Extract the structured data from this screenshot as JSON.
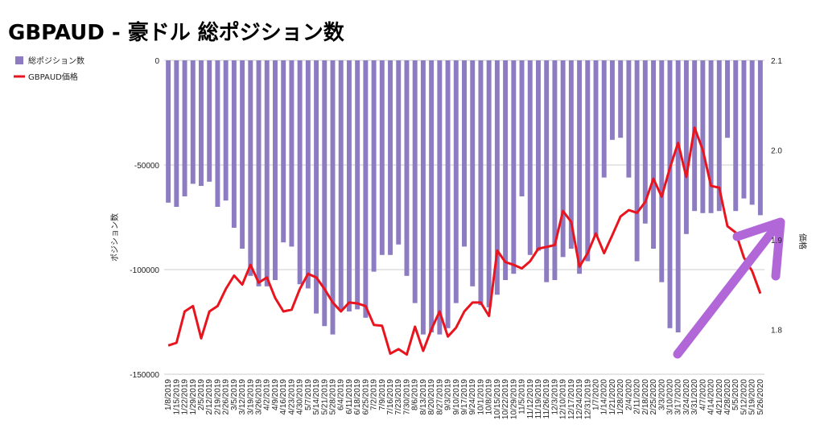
{
  "chart_data": {
    "type": "bar",
    "title": "GBPAUD - 豪ドル 総ポジション数",
    "y_left_label": "ポジション数",
    "y_right_label": "価格",
    "y_left_range": [
      -150000,
      0
    ],
    "y_left_ticks": [
      0,
      -50000,
      -100000,
      -150000
    ],
    "y_left_tick_labels": [
      "0",
      "-50000",
      "-100000",
      "-150000"
    ],
    "y_right_range": [
      1.75,
      2.1
    ],
    "y_right_ticks": [
      2.1,
      2.0,
      1.9,
      1.8
    ],
    "y_right_tick_labels": [
      "2.1",
      "2.0",
      "1.9",
      "1.8"
    ],
    "grid": true,
    "legend_position": "left",
    "categories": [
      "1/8/2019",
      "1/15/2019",
      "1/22/2019",
      "1/29/2019",
      "2/5/2019",
      "2/12/2019",
      "2/19/2019",
      "2/26/2019",
      "3/5/2019",
      "3/12/2019",
      "3/19/2019",
      "3/26/2019",
      "4/2/2019",
      "4/9/2019",
      "4/16/2019",
      "4/23/2019",
      "4/30/2019",
      "5/7/2019",
      "5/14/2019",
      "5/21/2019",
      "5/28/2019",
      "6/4/2019",
      "6/11/2019",
      "6/18/2019",
      "6/25/2019",
      "7/2/2019",
      "7/9/2019",
      "7/16/2019",
      "7/23/2019",
      "7/30/2019",
      "8/6/2019",
      "8/13/2019",
      "8/20/2019",
      "8/27/2019",
      "9/3/2019",
      "9/10/2019",
      "9/17/2019",
      "9/24/2019",
      "10/1/2019",
      "10/8/2019",
      "10/15/2019",
      "10/22/2019",
      "10/29/2019",
      "11/5/2019",
      "11/12/2019",
      "11/19/2019",
      "11/26/2019",
      "12/3/2019",
      "12/10/2019",
      "12/17/2019",
      "12/24/2019",
      "12/31/2019",
      "1/7/2020",
      "1/14/2020",
      "1/21/2020",
      "1/28/2020",
      "2/4/2020",
      "2/11/2020",
      "2/18/2020",
      "2/25/2020",
      "3/3/2020",
      "3/10/2020",
      "3/17/2020",
      "3/24/2020",
      "3/31/2020",
      "4/7/2020",
      "4/14/2020",
      "4/21/2020",
      "4/28/2020",
      "5/5/2020",
      "5/12/2020",
      "5/19/2020",
      "5/26/2020"
    ],
    "x_tick_labels": [
      "1/8/2019",
      "1/15/2019",
      "1/22/2019",
      "1/29/2019",
      "2/5/2019",
      "2/12/2019",
      "2/19/2019",
      "2/26/2019",
      "3/5/2019",
      "3/12/2019",
      "3/19/2019",
      "3/26/2019",
      "4/2/2019",
      "4/9/2019",
      "4/16/2019",
      "4/23/2019",
      "4/30/2019",
      "5/7/2019",
      "5/14/2019",
      "5/21/2019",
      "5/28/2019",
      "6/4/2019",
      "6/11/2019",
      "6/18/2019",
      "6/25/2019",
      "7/2/2019",
      "7/9/2019",
      "7/16/2019",
      "7/23/2019",
      "7/30/2019",
      "8/6/2019",
      "8/13/2019",
      "8/20/2019",
      "8/27/2019",
      "9/3/2019",
      "9/10/2019",
      "9/17/2019",
      "9/24/2019",
      "10/1/2019",
      "10/8/2019",
      "10/15/2019",
      "10/22/2019",
      "10/29/2019",
      "11/5/2019",
      "11/12/2019",
      "11/19/2019",
      "11/26/2019",
      "12/3/2019",
      "12/10/2019",
      "12/17/2019",
      "12/24/2019",
      "12/31/2019",
      "1/7/2020",
      "1/14/2020",
      "1/21/2020",
      "1/28/2020",
      "2/4/2020",
      "2/11/2020",
      "2/18/2020",
      "2/25/2020",
      "3/3/2020",
      "3/10/2020",
      "3/17/2020",
      "3/24/2020",
      "3/31/2020",
      "4/7/2020",
      "4/14/2020",
      "4/21/2020",
      "4/28/2020",
      "5/5/2020",
      "5/12/2020",
      "5/19/2020",
      "5/26/2020"
    ],
    "series": [
      {
        "name": "総ポジション数",
        "type": "bar",
        "axis": "left",
        "color": "#8e7cc3",
        "values": [
          -68000,
          -70000,
          -65000,
          -59000,
          -60000,
          -58000,
          -70000,
          -67000,
          -80000,
          -90000,
          -103000,
          -108000,
          -108000,
          -105000,
          -87000,
          -89000,
          -107000,
          -109000,
          -121000,
          -127000,
          -131000,
          -119000,
          -120000,
          -119000,
          -123000,
          -101000,
          -93000,
          -93000,
          -88000,
          -103000,
          -116000,
          -131000,
          -130000,
          -131000,
          -128000,
          -116000,
          -89000,
          -108000,
          -117000,
          -118000,
          -112000,
          -105000,
          -102000,
          -65000,
          -93000,
          -91000,
          -106000,
          -105000,
          -94000,
          -90000,
          -102000,
          -96000,
          -84000,
          -56000,
          -38000,
          -37000,
          -56000,
          -96000,
          -78000,
          -90000,
          -106000,
          -128000,
          -130000,
          -83000,
          -72000,
          -73000,
          -73000,
          -72000,
          -37000,
          -72000,
          -66000,
          -69000,
          -74000
        ]
      },
      {
        "name": "GBPAUD価格",
        "type": "line",
        "axis": "right",
        "color": "#e8141e",
        "values": [
          1.782,
          1.785,
          1.82,
          1.826,
          1.79,
          1.82,
          1.826,
          1.845,
          1.86,
          1.85,
          1.872,
          1.852,
          1.858,
          1.835,
          1.82,
          1.822,
          1.845,
          1.862,
          1.858,
          1.845,
          1.83,
          1.82,
          1.83,
          1.829,
          1.826,
          1.805,
          1.804,
          1.773,
          1.778,
          1.772,
          1.803,
          1.776,
          1.8,
          1.82,
          1.792,
          1.802,
          1.82,
          1.83,
          1.83,
          1.815,
          1.888,
          1.875,
          1.872,
          1.868,
          1.876,
          1.89,
          1.892,
          1.894,
          1.932,
          1.92,
          1.87,
          1.885,
          1.907,
          1.885,
          1.905,
          1.926,
          1.933,
          1.93,
          1.942,
          1.968,
          1.948,
          1.98,
          2.008,
          1.97,
          2.025,
          2.0,
          1.96,
          1.958,
          1.915,
          1.908,
          1.88,
          1.865,
          1.84
        ]
      }
    ],
    "annotations": [
      {
        "type": "arrow",
        "color": "#b167d8"
      }
    ]
  }
}
